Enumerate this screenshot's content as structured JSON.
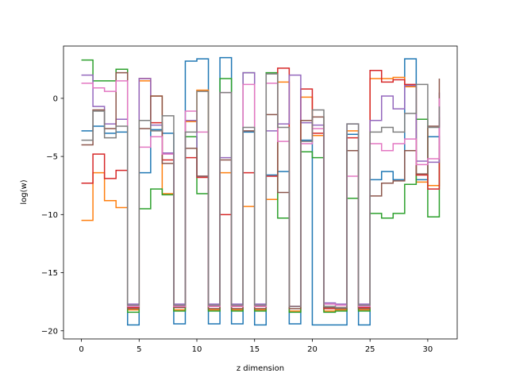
{
  "chart_data": {
    "type": "line",
    "step": "post",
    "title": "",
    "xlabel": "z dimension",
    "ylabel": "log(w)",
    "xlim": [
      -1.55,
      32.55
    ],
    "ylim": [
      -20.7,
      4.5
    ],
    "xticks": [
      0,
      5,
      10,
      15,
      20,
      25,
      30
    ],
    "yticks": [
      -20,
      -15,
      -10,
      -5,
      0
    ],
    "x_edges": [
      0,
      1,
      2,
      3,
      4,
      5,
      6,
      7,
      8,
      9,
      10,
      11,
      12,
      13,
      14,
      15,
      16,
      17,
      18,
      19,
      20,
      21,
      22,
      23,
      24,
      25,
      26,
      27,
      28,
      29,
      30,
      31
    ],
    "series": [
      {
        "color": "#1f77b4",
        "values": [
          -2.8,
          -2.4,
          -3.0,
          -2.9,
          -19.5,
          -6.4,
          -2.7,
          -3.0,
          -19.4,
          3.2,
          3.4,
          -19.4,
          3.5,
          -19.4,
          -2.9,
          -19.5,
          -6.6,
          -6.3,
          -19.4,
          -3.6,
          -19.5,
          -19.5,
          -19.5,
          -3.1,
          -19.5,
          -7.0,
          -6.3,
          -7.0,
          3.4,
          -7.0,
          -3.3,
          -3.4
        ]
      },
      {
        "color": "#ff7f0e",
        "values": [
          -10.5,
          -6.4,
          -8.8,
          -9.4,
          -18.2,
          1.5,
          0.2,
          -8.2,
          -18.2,
          -2.0,
          0.7,
          -18.2,
          -6.4,
          -18.2,
          -9.3,
          -18.2,
          -8.7,
          1.4,
          -18.3,
          0.1,
          -3.2,
          -18.3,
          -18.2,
          -2.8,
          -18.2,
          1.7,
          1.7,
          1.8,
          1.0,
          -7.2,
          -7.5,
          -4.1
        ]
      },
      {
        "color": "#2ca02c",
        "values": [
          3.3,
          1.5,
          1.5,
          2.5,
          -18.4,
          -9.5,
          -7.8,
          -8.3,
          -18.3,
          -3.3,
          -8.2,
          -18.3,
          1.7,
          -18.3,
          2.2,
          -18.3,
          2.2,
          -10.3,
          -18.4,
          -4.6,
          -5.1,
          -18.4,
          -18.3,
          -8.6,
          -18.3,
          -9.9,
          -10.3,
          -9.9,
          -7.4,
          -1.8,
          -10.2,
          -3.4
        ]
      },
      {
        "color": "#d62728",
        "values": [
          -7.3,
          -4.8,
          -6.9,
          -6.2,
          -18.0,
          1.7,
          -2.1,
          -5.3,
          -17.9,
          -5.1,
          -6.8,
          -17.9,
          -10.0,
          -17.9,
          -6.4,
          -17.9,
          -6.7,
          2.6,
          -17.9,
          0.8,
          -3.0,
          -18.1,
          -18.0,
          -3.4,
          -18.0,
          2.4,
          1.4,
          1.6,
          1.2,
          -6.6,
          -7.8,
          -1.6
        ]
      },
      {
        "color": "#9467bd",
        "values": [
          2.0,
          -0.7,
          -2.2,
          -1.8,
          -17.7,
          1.7,
          -2.3,
          -4.7,
          -17.7,
          -1.9,
          -6.7,
          -17.7,
          -5.1,
          -17.7,
          2.2,
          -17.7,
          -2.8,
          -2.2,
          2.0,
          -2.1,
          -2.3,
          -17.6,
          -17.7,
          -2.2,
          -17.7,
          -1.9,
          0.2,
          -0.9,
          1.1,
          -5.4,
          -5.5,
          0.5
        ]
      },
      {
        "color": "#8c564b",
        "values": [
          -4.0,
          -1.0,
          -2.6,
          2.2,
          -18.1,
          -2.6,
          0.2,
          -5.6,
          -18.0,
          -4.3,
          -6.7,
          -18.1,
          -5.3,
          -18.1,
          -2.8,
          -18.1,
          -1.4,
          -8.1,
          -18.1,
          -1.9,
          -1.6,
          -18.0,
          -18.1,
          -4.5,
          -18.1,
          -8.4,
          -7.3,
          -7.1,
          -4.5,
          -6.5,
          -2.4,
          1.7
        ]
      },
      {
        "color": "#e377c2",
        "values": [
          1.3,
          0.9,
          0.6,
          1.5,
          -17.9,
          -4.2,
          -3.3,
          -4.8,
          -17.9,
          -1.1,
          -2.9,
          -17.9,
          0.5,
          -17.9,
          1.2,
          -17.9,
          1.3,
          -3.7,
          -17.9,
          -3.9,
          -2.6,
          -17.7,
          -17.8,
          -6.7,
          -17.9,
          -3.9,
          -4.5,
          -3.9,
          -3.5,
          -5.7,
          -5.2,
          0.0
        ]
      },
      {
        "color": "#7f7f7f",
        "values": [
          -3.6,
          -1.1,
          -3.4,
          -2.4,
          -17.8,
          -1.9,
          -2.8,
          -1.5,
          -17.8,
          -2.9,
          0.6,
          -17.8,
          0.5,
          -17.8,
          -2.5,
          -17.8,
          2.1,
          -2.5,
          -17.9,
          -3.7,
          -1.0,
          -17.9,
          -18.0,
          -2.2,
          -17.8,
          -2.9,
          -2.5,
          -2.9,
          -1.3,
          1.2,
          -2.5,
          -0.7
        ]
      }
    ]
  }
}
